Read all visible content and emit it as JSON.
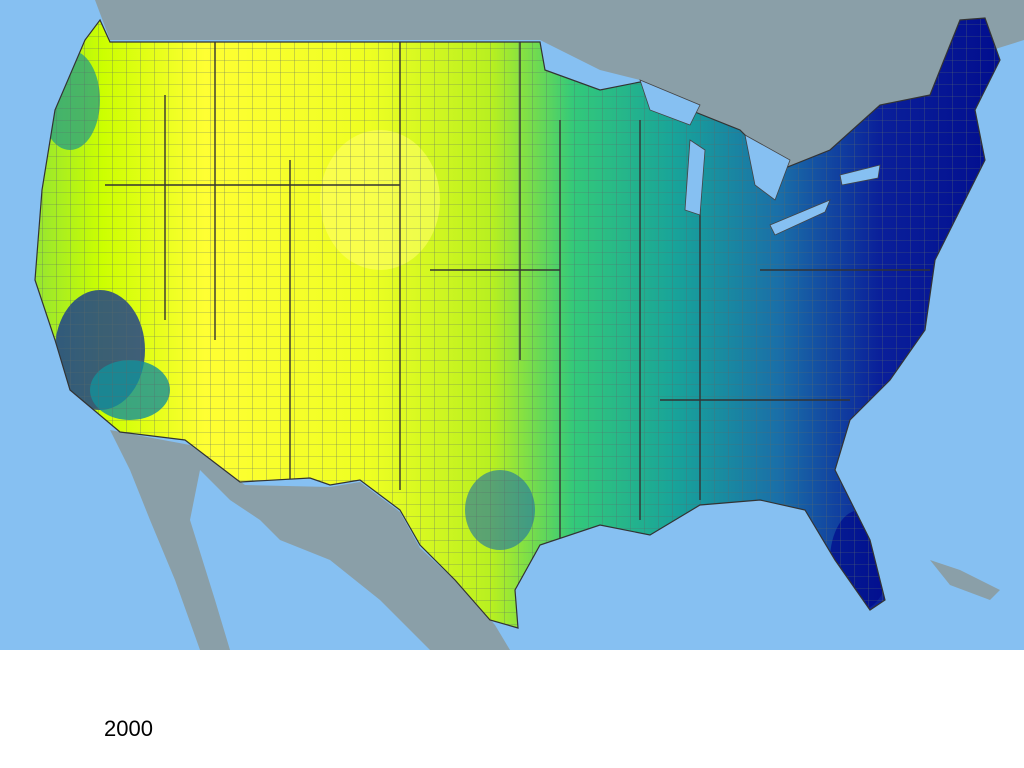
{
  "caption": "2000"
}
